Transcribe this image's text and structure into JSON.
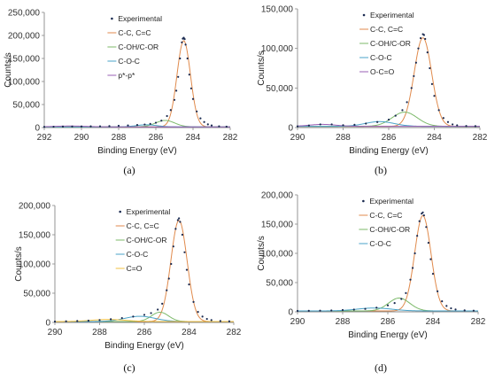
{
  "chart_data": [
    {
      "type": "line",
      "panel_label": "(a)",
      "xlabel": "Binding Energy (eV)",
      "ylabel": "Counts/s",
      "xlim": [
        292,
        282
      ],
      "ylim": [
        0,
        250000
      ],
      "x_ticks": [
        "292",
        "290",
        "288",
        "286",
        "284",
        "282"
      ],
      "y_ticks": [
        "0",
        "50,000",
        "100,000",
        "150,000",
        "200,000",
        "250,000"
      ],
      "legend": "inside, upper-left",
      "experimental": {
        "name": "Experimental",
        "baseline": 1500,
        "points": [
          [
            292.0,
            1500
          ],
          [
            291.5,
            1800
          ],
          [
            291.0,
            2100
          ],
          [
            290.5,
            2300
          ],
          [
            290.0,
            2400
          ],
          [
            289.5,
            2600
          ],
          [
            289.0,
            2800
          ],
          [
            288.5,
            3200
          ],
          [
            288.0,
            3800
          ],
          [
            287.5,
            4600
          ],
          [
            287.0,
            5600
          ],
          [
            286.6,
            6600
          ],
          [
            286.3,
            8000
          ],
          [
            286.0,
            10500
          ],
          [
            285.7,
            15000
          ],
          [
            285.4,
            25000
          ],
          [
            285.2,
            38000
          ],
          [
            285.0,
            60000
          ],
          [
            284.9,
            80000
          ],
          [
            284.8,
            110000
          ],
          [
            284.7,
            150000
          ],
          [
            284.6,
            185000
          ],
          [
            284.55,
            193000
          ],
          [
            284.5,
            195000
          ],
          [
            284.45,
            192000
          ],
          [
            284.4,
            180000
          ],
          [
            284.3,
            150000
          ],
          [
            284.2,
            115000
          ],
          [
            284.1,
            85000
          ],
          [
            284.0,
            62000
          ],
          [
            283.8,
            35000
          ],
          [
            283.6,
            20000
          ],
          [
            283.4,
            12000
          ],
          [
            283.2,
            7000
          ],
          [
            283.0,
            4500
          ],
          [
            282.6,
            2800
          ],
          [
            282.2,
            2000
          ]
        ]
      },
      "series": [
        {
          "name": "C-C, C=C",
          "color": "#e08a4c",
          "center": 284.5,
          "height": 187000,
          "fwhm": 0.85
        },
        {
          "name": "C-OH/C-OR",
          "color": "#7cb96a",
          "center": 285.5,
          "height": 14000,
          "fwhm": 1.2
        },
        {
          "name": "C-O-C",
          "color": "#4aa3c8",
          "center": 286.5,
          "height": 4500,
          "fwhm": 1.3
        },
        {
          "name": "p*-p*",
          "color": "#9a5fb4",
          "center": 290.6,
          "height": 1800,
          "fwhm": 2.0
        }
      ]
    },
    {
      "type": "line",
      "panel_label": "(b)",
      "xlabel": "Binding Energy (eV)",
      "ylabel": "Counts/s",
      "xlim": [
        290,
        282
      ],
      "ylim": [
        0,
        150000
      ],
      "x_ticks": [
        "290",
        "288",
        "286",
        "284",
        "282"
      ],
      "y_ticks": [
        "0",
        "50,000",
        "100,000",
        "150,000"
      ],
      "legend": "inside, upper-left",
      "experimental": {
        "name": "Experimental",
        "baseline": 1500,
        "points": [
          [
            290.0,
            1500
          ],
          [
            289.5,
            2500
          ],
          [
            289.0,
            4000
          ],
          [
            288.5,
            4000
          ],
          [
            288.0,
            3000
          ],
          [
            287.5,
            3500
          ],
          [
            287.0,
            5000
          ],
          [
            286.5,
            7000
          ],
          [
            286.0,
            10000
          ],
          [
            285.7,
            15000
          ],
          [
            285.4,
            22000
          ],
          [
            285.2,
            32000
          ],
          [
            285.0,
            50000
          ],
          [
            284.9,
            65000
          ],
          [
            284.8,
            82000
          ],
          [
            284.7,
            100000
          ],
          [
            284.6,
            113000
          ],
          [
            284.5,
            118000
          ],
          [
            284.45,
            117000
          ],
          [
            284.4,
            112000
          ],
          [
            284.3,
            95000
          ],
          [
            284.2,
            75000
          ],
          [
            284.1,
            55000
          ],
          [
            284.0,
            40000
          ],
          [
            283.8,
            22000
          ],
          [
            283.6,
            12000
          ],
          [
            283.4,
            7000
          ],
          [
            283.2,
            4000
          ],
          [
            283.0,
            2800
          ],
          [
            282.6,
            2000
          ],
          [
            282.2,
            1800
          ]
        ]
      },
      "series": [
        {
          "name": "C-C, C=C",
          "color": "#e08a4c",
          "center": 284.5,
          "height": 112000,
          "fwhm": 0.9
        },
        {
          "name": "C-OH/C-OR",
          "color": "#7cb96a",
          "center": 285.3,
          "height": 18000,
          "fwhm": 1.3
        },
        {
          "name": "C-O-C",
          "color": "#4aa3c8",
          "center": 286.4,
          "height": 6000,
          "fwhm": 1.5
        },
        {
          "name": "O-C=O",
          "color": "#9a5fb4",
          "center": 288.9,
          "height": 2500,
          "fwhm": 1.4
        }
      ]
    },
    {
      "type": "line",
      "panel_label": "(c)",
      "xlabel": "Binding Energy (eV)",
      "ylabel": "Counts/s",
      "xlim": [
        290,
        282
      ],
      "ylim": [
        0,
        200000
      ],
      "x_ticks": [
        "290",
        "288",
        "286",
        "284",
        "282"
      ],
      "y_ticks": [
        "0",
        "50,000",
        "100,000",
        "150,000",
        "200,000"
      ],
      "legend": "inside, upper-left",
      "experimental": {
        "name": "Experimental",
        "baseline": 1500,
        "points": [
          [
            290.0,
            1500
          ],
          [
            289.5,
            2000
          ],
          [
            289.0,
            2500
          ],
          [
            288.5,
            3000
          ],
          [
            288.0,
            4000
          ],
          [
            287.5,
            5500
          ],
          [
            287.0,
            7500
          ],
          [
            286.5,
            10000
          ],
          [
            286.0,
            13000
          ],
          [
            285.7,
            16000
          ],
          [
            285.4,
            22000
          ],
          [
            285.2,
            32000
          ],
          [
            285.0,
            55000
          ],
          [
            284.9,
            75000
          ],
          [
            284.8,
            100000
          ],
          [
            284.7,
            130000
          ],
          [
            284.6,
            160000
          ],
          [
            284.5,
            175000
          ],
          [
            284.45,
            178000
          ],
          [
            284.4,
            172000
          ],
          [
            284.3,
            150000
          ],
          [
            284.2,
            120000
          ],
          [
            284.1,
            90000
          ],
          [
            284.0,
            65000
          ],
          [
            283.8,
            35000
          ],
          [
            283.6,
            18000
          ],
          [
            283.4,
            10000
          ],
          [
            283.2,
            6000
          ],
          [
            283.0,
            4000
          ],
          [
            282.6,
            2500
          ],
          [
            282.2,
            2000
          ]
        ]
      },
      "series": [
        {
          "name": "C-C, C=C",
          "color": "#e08a4c",
          "center": 284.45,
          "height": 173000,
          "fwhm": 0.85
        },
        {
          "name": "C-OH/C-OR",
          "color": "#7cb96a",
          "center": 285.3,
          "height": 16000,
          "fwhm": 0.9
        },
        {
          "name": "C-O-C",
          "color": "#4aa3c8",
          "center": 286.2,
          "height": 9000,
          "fwhm": 1.6
        },
        {
          "name": "C=O",
          "color": "#f0c040",
          "center": 287.6,
          "height": 3500,
          "fwhm": 1.8
        }
      ]
    },
    {
      "type": "line",
      "panel_label": "(d)",
      "xlabel": "Binding Energy (eV)",
      "ylabel": "Counts/s",
      "xlim": [
        290,
        282
      ],
      "ylim": [
        0,
        200000
      ],
      "x_ticks": [
        "290",
        "288",
        "286",
        "284",
        "282"
      ],
      "y_ticks": [
        "0",
        "50,000",
        "100,000",
        "150,000",
        "200,000"
      ],
      "legend": "inside, upper-left",
      "experimental": {
        "name": "Experimental",
        "baseline": 1500,
        "points": [
          [
            290.0,
            1500
          ],
          [
            289.5,
            1700
          ],
          [
            289.0,
            2000
          ],
          [
            288.5,
            2400
          ],
          [
            288.0,
            3000
          ],
          [
            287.5,
            3800
          ],
          [
            287.0,
            5000
          ],
          [
            286.5,
            7000
          ],
          [
            286.0,
            11000
          ],
          [
            285.7,
            15000
          ],
          [
            285.4,
            22000
          ],
          [
            285.2,
            32000
          ],
          [
            285.0,
            55000
          ],
          [
            284.9,
            75000
          ],
          [
            284.8,
            100000
          ],
          [
            284.7,
            130000
          ],
          [
            284.6,
            155000
          ],
          [
            284.5,
            168000
          ],
          [
            284.45,
            170000
          ],
          [
            284.4,
            165000
          ],
          [
            284.3,
            145000
          ],
          [
            284.2,
            118000
          ],
          [
            284.1,
            90000
          ],
          [
            284.0,
            65000
          ],
          [
            283.8,
            35000
          ],
          [
            283.6,
            18000
          ],
          [
            283.4,
            10000
          ],
          [
            283.2,
            6000
          ],
          [
            283.0,
            4000
          ],
          [
            282.6,
            2500
          ],
          [
            282.2,
            2000
          ]
        ]
      },
      "series": [
        {
          "name": "C-C, C=C",
          "color": "#e08a4c",
          "center": 284.45,
          "height": 163000,
          "fwhm": 0.85
        },
        {
          "name": "C-OH/C-OR",
          "color": "#7cb96a",
          "center": 285.5,
          "height": 22000,
          "fwhm": 1.1
        },
        {
          "name": "C-O-C",
          "color": "#4aa3c8",
          "center": 286.6,
          "height": 5000,
          "fwhm": 1.8
        }
      ]
    }
  ]
}
